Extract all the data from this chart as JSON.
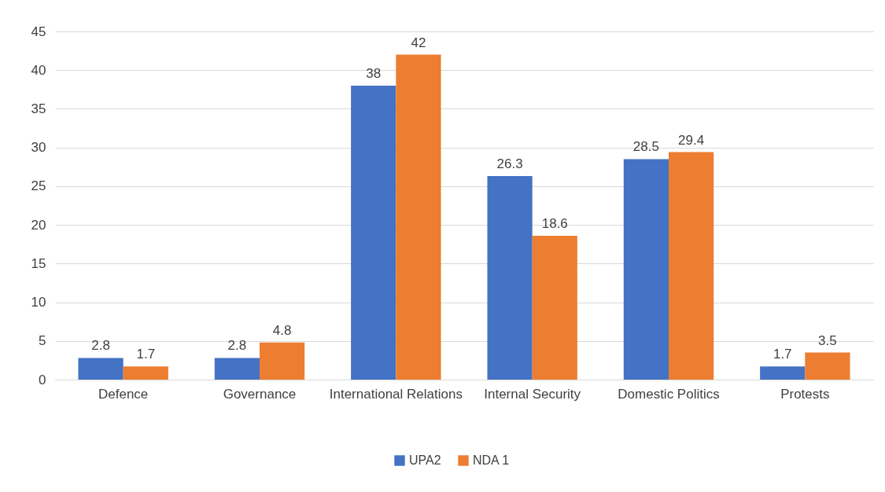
{
  "chart_data": {
    "type": "bar",
    "categories": [
      "Defence",
      "Governance",
      "International Relations",
      "Internal Security",
      "Domestic Politics",
      "Protests"
    ],
    "series": [
      {
        "name": "UPA2",
        "color": "#4472c4",
        "values": [
          2.8,
          2.8,
          38,
          26.3,
          28.5,
          1.7
        ]
      },
      {
        "name": "NDA 1",
        "color": "#ed7d31",
        "values": [
          1.7,
          4.8,
          42,
          18.6,
          29.4,
          3.5
        ]
      }
    ],
    "ylim": [
      0,
      45
    ],
    "yticks": [
      0,
      5,
      10,
      15,
      20,
      25,
      30,
      35,
      40,
      45
    ],
    "grid": "y",
    "legend": "bottom",
    "data_labels": true
  }
}
